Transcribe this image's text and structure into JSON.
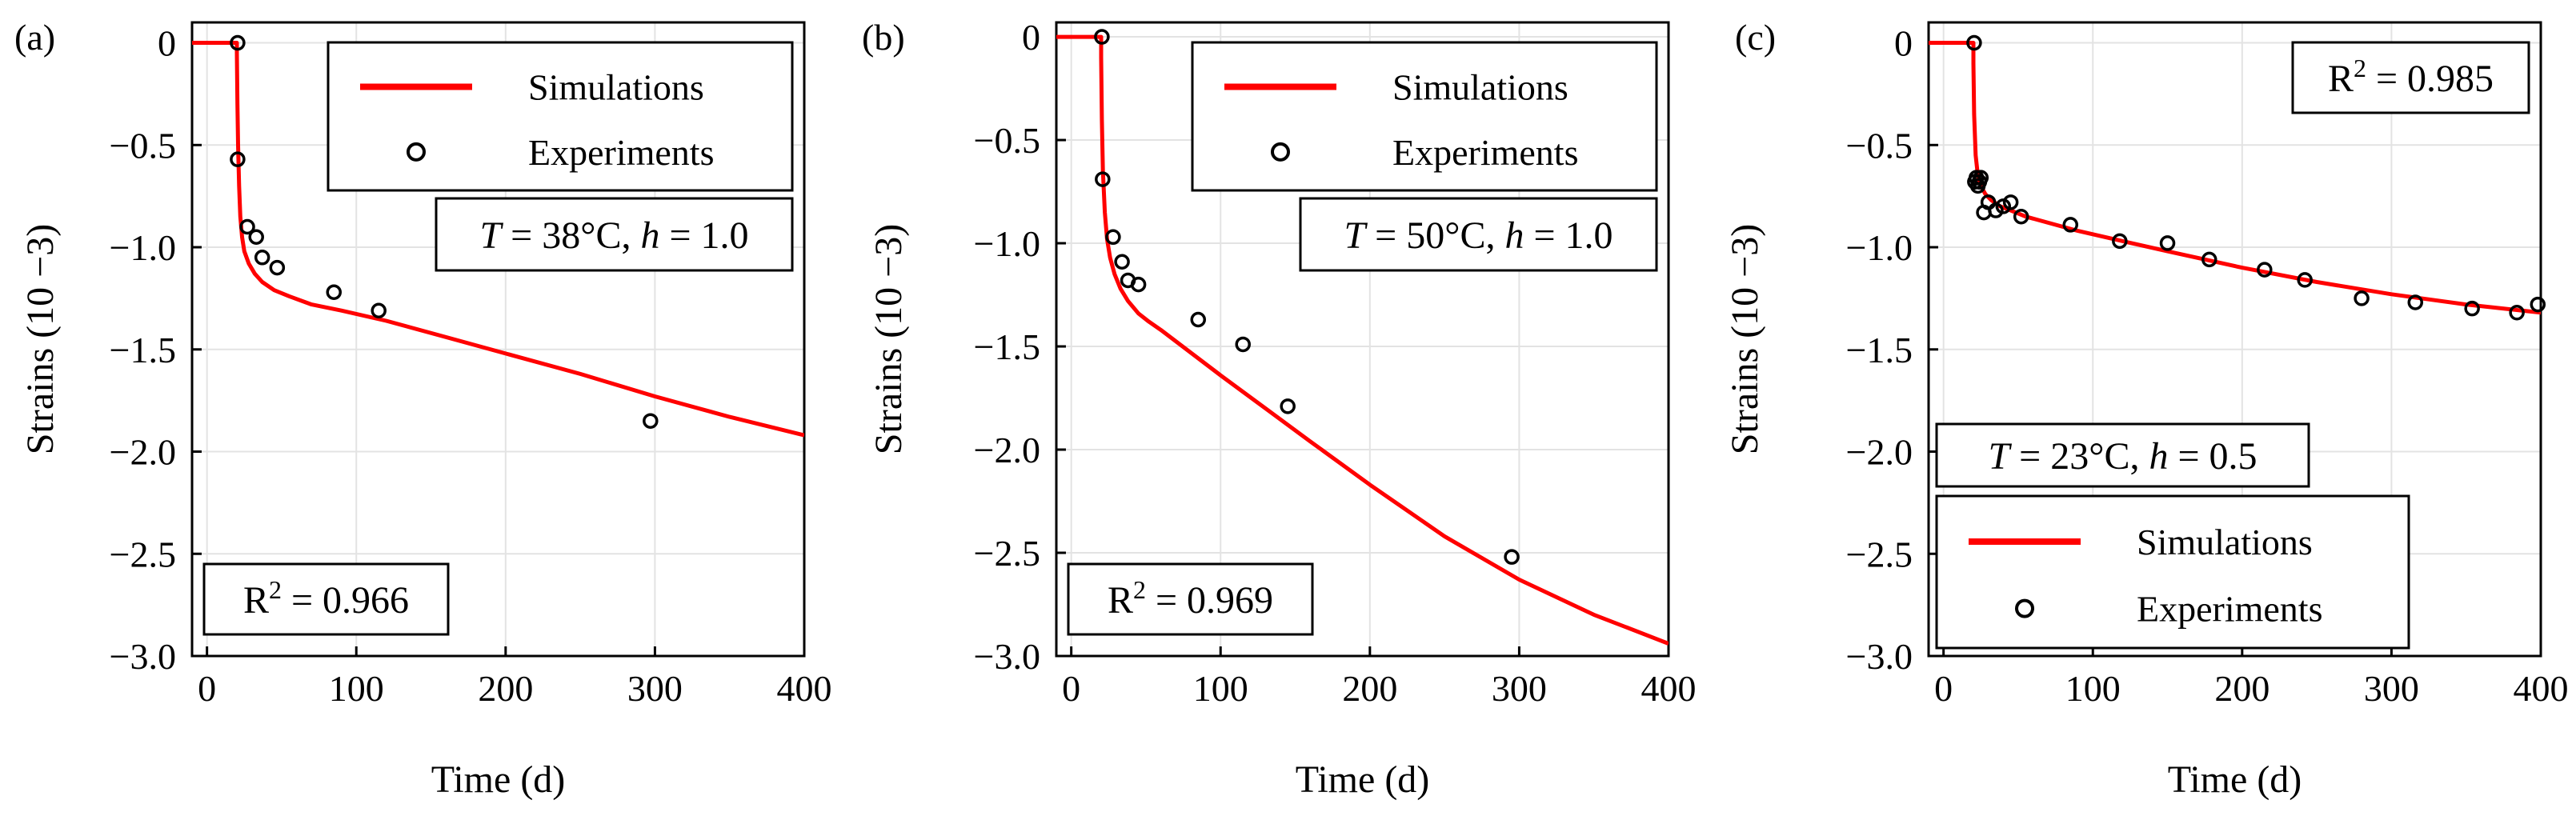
{
  "figure": {
    "panels": [
      "(a)",
      "(b)",
      "(c)"
    ]
  },
  "chart_data": [
    {
      "type": "line",
      "panel_label": "(a)",
      "xlabel": "Time (d)",
      "ylabel": "Strains (10 −3)",
      "xlim": [
        -10,
        400
      ],
      "ylim": [
        -3.0,
        0.1
      ],
      "xticks": [
        0,
        100,
        200,
        300,
        400
      ],
      "yticks": [
        0,
        -0.5,
        -1.0,
        -1.5,
        -2.0,
        -2.5,
        -3.0
      ],
      "ytick_labels": [
        "0",
        "−0.5",
        "−1.0",
        "−1.5",
        "−2.0",
        "−2.5",
        "−3.0"
      ],
      "grid": true,
      "legend": {
        "position": "top-right",
        "entries": [
          "Simulations",
          "Experiments"
        ]
      },
      "condition": {
        "T_label": "T",
        "T_value": " = 38°C, ",
        "h_label": "h",
        "h_value": " = 1.0",
        "position": "upper-right"
      },
      "r2": {
        "base": "R",
        "exp": "2",
        "rest": " = 0.966",
        "position": "bottom-left"
      },
      "series": [
        {
          "name": "Simulations",
          "style": "line",
          "color": "#ff0000",
          "x": [
            -10,
            0,
            10,
            20,
            20,
            20.4,
            20.8,
            21.5,
            22.3,
            23.5,
            25,
            28,
            32,
            37,
            45,
            55,
            70,
            90,
            120,
            160,
            200,
            250,
            300,
            350,
            400
          ],
          "y": [
            0,
            0,
            0,
            0,
            -0.05,
            -0.3,
            -0.5,
            -0.7,
            -0.85,
            -0.95,
            -1.02,
            -1.08,
            -1.13,
            -1.17,
            -1.21,
            -1.24,
            -1.28,
            -1.31,
            -1.36,
            -1.44,
            -1.52,
            -1.62,
            -1.73,
            -1.83,
            -1.92
          ]
        },
        {
          "name": "Experiments",
          "style": "markers",
          "marker": "open-circle",
          "x": [
            20.5,
            20.5,
            27,
            33,
            37,
            47,
            85,
            115,
            297
          ],
          "y": [
            0,
            -0.57,
            -0.9,
            -0.95,
            -1.05,
            -1.1,
            -1.22,
            -1.31,
            -1.85
          ]
        }
      ]
    },
    {
      "type": "line",
      "panel_label": "(b)",
      "xlabel": "Time (d)",
      "ylabel": "Strains (10 −3)",
      "xlim": [
        -10,
        400
      ],
      "ylim": [
        -3.0,
        0.07
      ],
      "xticks": [
        0,
        100,
        200,
        300,
        400
      ],
      "yticks": [
        0,
        -0.5,
        -1.0,
        -1.5,
        -2.0,
        -2.5,
        -3.0
      ],
      "ytick_labels": [
        "0",
        "−0.5",
        "−1.0",
        "−1.5",
        "−2.0",
        "−2.5",
        "−3.0"
      ],
      "grid": true,
      "legend": {
        "position": "top-right",
        "entries": [
          "Simulations",
          "Experiments"
        ]
      },
      "condition": {
        "T_label": "T",
        "T_value": " = 50°C, ",
        "h_label": "h",
        "h_value": " = 1.0",
        "position": "upper-right"
      },
      "r2": {
        "base": "R",
        "exp": "2",
        "rest": " = 0.969",
        "position": "bottom-left"
      },
      "series": [
        {
          "name": "Simulations",
          "style": "line",
          "color": "#ff0000",
          "x": [
            -10,
            0,
            10,
            20,
            20,
            20.5,
            21.2,
            22.5,
            24,
            26,
            29,
            33,
            38,
            45,
            52,
            60,
            80,
            100,
            130,
            160,
            200,
            250,
            300,
            350,
            400
          ],
          "y": [
            0,
            0,
            0,
            0,
            -0.1,
            -0.4,
            -0.65,
            -0.85,
            -0.98,
            -1.07,
            -1.15,
            -1.22,
            -1.28,
            -1.34,
            -1.38,
            -1.42,
            -1.53,
            -1.64,
            -1.8,
            -1.96,
            -2.17,
            -2.42,
            -2.63,
            -2.8,
            -2.94
          ]
        },
        {
          "name": "Experiments",
          "style": "markers",
          "marker": "open-circle",
          "x": [
            20.5,
            21,
            28,
            34,
            38,
            45,
            85,
            115,
            145,
            295
          ],
          "y": [
            0,
            -0.69,
            -0.97,
            -1.09,
            -1.18,
            -1.2,
            -1.37,
            -1.49,
            -1.79,
            -2.52
          ]
        }
      ]
    },
    {
      "type": "line",
      "panel_label": "(c)",
      "xlabel": "Time (d)",
      "ylabel": "Strains (10 −3)",
      "xlim": [
        -10,
        400
      ],
      "ylim": [
        -3.0,
        0.1
      ],
      "xticks": [
        0,
        100,
        200,
        300,
        400
      ],
      "yticks": [
        0,
        -0.5,
        -1.0,
        -1.5,
        -2.0,
        -2.5,
        -3.0
      ],
      "ytick_labels": [
        "0",
        "−0.5",
        "−1.0",
        "−1.5",
        "−2.0",
        "−2.5",
        "−3.0"
      ],
      "grid": true,
      "legend": {
        "position": "bottom-left",
        "entries": [
          "Simulations",
          "Experiments"
        ]
      },
      "condition": {
        "T_label": "T",
        "T_value": " = 23°C, ",
        "h_label": "h",
        "h_value": " = 0.5",
        "position": "lower-left"
      },
      "r2": {
        "base": "R",
        "exp": "2",
        "rest": " = 0.985",
        "position": "top-right"
      },
      "series": [
        {
          "name": "Simulations",
          "style": "line",
          "color": "#ff0000",
          "x": [
            -10,
            0,
            10,
            20,
            20,
            20.5,
            21.5,
            23,
            25,
            28,
            32,
            38,
            45,
            55,
            70,
            90,
            120,
            150,
            200,
            250,
            300,
            350,
            400
          ],
          "y": [
            0,
            0,
            0,
            0,
            -0.1,
            -0.35,
            -0.55,
            -0.65,
            -0.7,
            -0.74,
            -0.77,
            -0.8,
            -0.82,
            -0.85,
            -0.88,
            -0.92,
            -0.97,
            -1.02,
            -1.1,
            -1.17,
            -1.23,
            -1.28,
            -1.32
          ]
        },
        {
          "name": "Experiments",
          "style": "markers",
          "marker": "open-circle",
          "x": [
            20.5,
            21,
            22,
            23,
            24,
            25,
            27,
            30,
            35,
            40,
            45,
            52,
            85,
            118,
            150,
            178,
            215,
            242,
            280,
            316,
            354,
            384,
            398
          ],
          "y": [
            0,
            -0.68,
            -0.66,
            -0.7,
            -0.68,
            -0.66,
            -0.83,
            -0.78,
            -0.82,
            -0.8,
            -0.78,
            -0.85,
            -0.89,
            -0.97,
            -0.98,
            -1.06,
            -1.11,
            -1.16,
            -1.25,
            -1.27,
            -1.3,
            -1.32,
            -1.28
          ]
        }
      ]
    }
  ]
}
